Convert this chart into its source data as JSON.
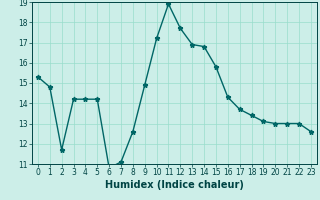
{
  "x": [
    0,
    1,
    2,
    3,
    4,
    5,
    6,
    7,
    8,
    9,
    10,
    11,
    12,
    13,
    14,
    15,
    16,
    17,
    18,
    19,
    20,
    21,
    22,
    23
  ],
  "y": [
    15.3,
    14.8,
    11.7,
    14.2,
    14.2,
    14.2,
    10.8,
    11.1,
    12.6,
    14.9,
    17.2,
    18.9,
    17.7,
    16.9,
    16.8,
    15.8,
    14.3,
    13.7,
    13.4,
    13.1,
    13.0,
    13.0,
    13.0,
    12.6
  ],
  "xlabel": "Humidex (Indice chaleur)",
  "ylim": [
    11,
    19
  ],
  "xlim_min": -0.5,
  "xlim_max": 23.5,
  "yticks": [
    11,
    12,
    13,
    14,
    15,
    16,
    17,
    18,
    19
  ],
  "xticks": [
    0,
    1,
    2,
    3,
    4,
    5,
    6,
    7,
    8,
    9,
    10,
    11,
    12,
    13,
    14,
    15,
    16,
    17,
    18,
    19,
    20,
    21,
    22,
    23
  ],
  "line_color": "#006666",
  "marker": "*",
  "bg_color": "#cceee8",
  "grid_color": "#99ddcc",
  "text_color": "#004444",
  "xlabel_fontsize": 7,
  "tick_fontsize": 5.5,
  "line_width": 1.0,
  "marker_size": 3.5
}
